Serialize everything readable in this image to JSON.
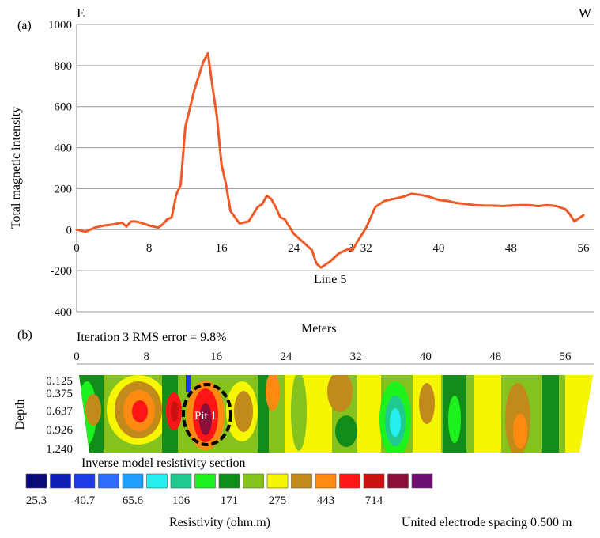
{
  "chart_data": [
    {
      "type": "line",
      "panel_label": "(a)",
      "ylabel": "Total magnetic intensity",
      "direction_left": "E",
      "direction_right": "W",
      "annotation": "Line 5",
      "xlim": [
        0,
        56
      ],
      "ylim": [
        -400,
        1000
      ],
      "xticks": [
        "0",
        "8",
        "16",
        "24",
        "32",
        "40",
        "48",
        "56"
      ],
      "xtick_hidden_label": "3",
      "yticks": [
        "1000",
        "800",
        "600",
        "400",
        "200",
        "0",
        "-200",
        "-400"
      ],
      "grid": "horizontal",
      "line_color": "#f05a28",
      "series": [
        {
          "x": [
            0,
            1,
            2,
            3,
            4,
            5,
            5.5,
            6,
            6.5,
            7,
            8,
            9,
            9.5,
            10,
            10.5,
            11,
            11.5,
            12,
            13,
            14,
            14.5,
            15,
            15.5,
            16,
            16.5,
            17,
            17.5,
            18,
            19,
            20,
            20.5,
            21,
            21.5,
            22,
            22.5,
            23,
            24,
            25,
            26,
            26.5,
            27,
            28,
            29,
            30,
            30.5,
            31,
            32,
            32.5,
            33,
            34,
            35,
            36,
            37,
            38,
            39,
            40,
            41,
            42,
            43,
            44,
            45,
            46,
            47,
            48,
            49,
            50,
            51,
            52,
            53,
            54,
            54.5,
            55,
            56
          ],
          "y": [
            0,
            -10,
            10,
            20,
            25,
            35,
            15,
            40,
            40,
            35,
            20,
            10,
            25,
            50,
            60,
            170,
            220,
            500,
            680,
            820,
            860,
            700,
            550,
            320,
            220,
            90,
            60,
            30,
            40,
            110,
            125,
            165,
            150,
            110,
            60,
            50,
            -20,
            -60,
            -100,
            -165,
            -185,
            -155,
            -115,
            -95,
            -100,
            -60,
            10,
            60,
            110,
            140,
            150,
            160,
            175,
            170,
            160,
            145,
            140,
            130,
            125,
            120,
            118,
            117,
            115,
            118,
            120,
            120,
            115,
            120,
            115,
            100,
            75,
            40,
            70
          ]
        }
      ]
    },
    {
      "type": "heatmap",
      "panel_label": "(b)",
      "title": "Iteration 3 RMS error = 9.8%",
      "xlabel": "Meters",
      "xticks": [
        "0",
        "8",
        "16",
        "24",
        "32",
        "40",
        "48",
        "56"
      ],
      "ylabel": "Depth",
      "depth_levels": [
        "0.125",
        "0.375",
        "0.637",
        "0.926",
        "1.240"
      ],
      "annotation": "Pit 1",
      "section_title": "Inverse model resistivity section",
      "colorbar_label": "Resistivity (ohm.m)",
      "colorbar_ticks": [
        "25.3",
        "40.7",
        "65.6",
        "106",
        "171",
        "275",
        "443",
        "714"
      ],
      "colorbar_colors": [
        "#0a0a78",
        "#0d1fb4",
        "#1e3ce6",
        "#2f6bff",
        "#1fa0ff",
        "#25f0ef",
        "#1fc990",
        "#1ef21e",
        "#0f8f1a",
        "#84c21d",
        "#f6f600",
        "#c28a1b",
        "#ff8a12",
        "#ff1515",
        "#cc1111",
        "#8b0f3a",
        "#6c0f70"
      ],
      "footer": "United electrode spacing 0.500 m"
    }
  ]
}
